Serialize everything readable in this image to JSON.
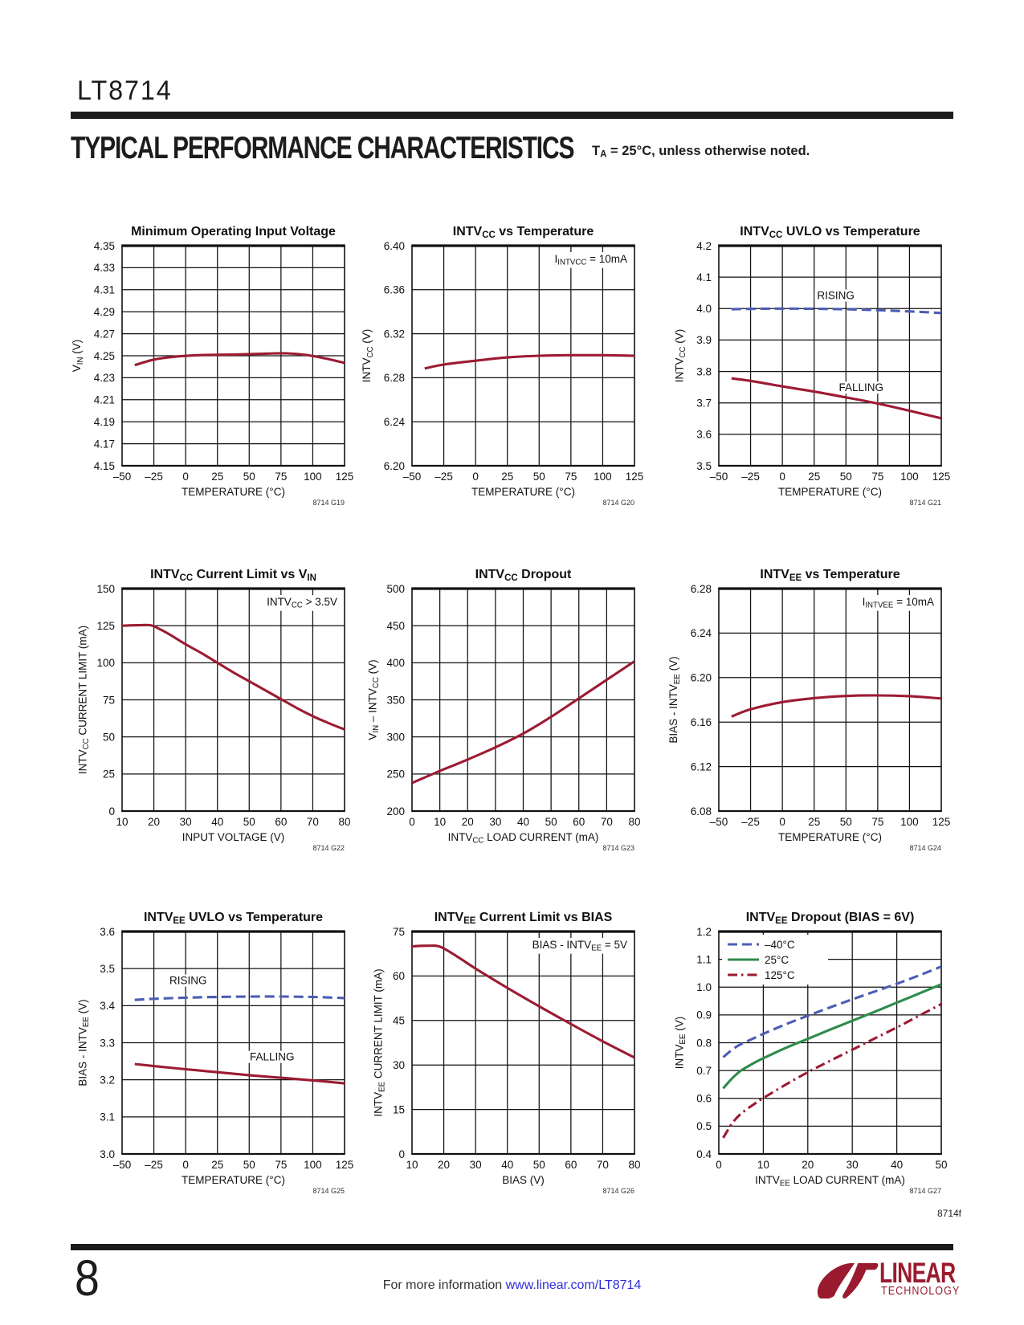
{
  "page": {
    "part_number": "LT8714",
    "section_title": "TYPICAL PERFORMANCE CHARACTERISTICS",
    "section_note": "T~A~ = 25°C, unless otherwise noted.",
    "footer": {
      "doc_code": "8714f",
      "page_number": "8",
      "info_text": "For more information ",
      "info_link": "www.linear.com/LT8714",
      "logo_brand": "LINEAR",
      "logo_sub": "TECHNOLOGY"
    },
    "colors": {
      "red": "#9c1b33",
      "blue": "#4c5cb5",
      "green": "#2f8b4b",
      "grid": "#111111",
      "text": "#111111",
      "link": "#2b2bd9",
      "logo": "#9a1b2f"
    }
  },
  "chart_data": [
    {
      "id": "8714 G19",
      "type": "line",
      "title": "Minimum Operating Input Voltage",
      "xlabel": "TEMPERATURE (°C)",
      "ylabel": "V~IN~ (V)",
      "xlim": [
        -50,
        125
      ],
      "xstep": 25,
      "xdec": 0,
      "ylim": [
        4.15,
        4.35
      ],
      "ystep": 0.02,
      "ydec": 2,
      "series": [
        {
          "name": "VIN",
          "color": "red",
          "style": "solid",
          "points": [
            [
              -40,
              4.2415
            ],
            [
              -25,
              4.2465
            ],
            [
              -10,
              4.249
            ],
            [
              10,
              4.2505
            ],
            [
              40,
              4.2512
            ],
            [
              65,
              4.252
            ],
            [
              80,
              4.2522
            ],
            [
              95,
              4.2507
            ],
            [
              110,
              4.2475
            ],
            [
              125,
              4.2435
            ]
          ]
        }
      ]
    },
    {
      "id": "8714 G20",
      "type": "line",
      "title": "INTV~CC~ vs Temperature",
      "xlabel": "TEMPERATURE (°C)",
      "ylabel": "INTV~CC~ (V)",
      "xlim": [
        -50,
        125
      ],
      "xstep": 25,
      "xdec": 0,
      "ylim": [
        6.2,
        6.4
      ],
      "ystep": 0.04,
      "ydec": 2,
      "annotation": "I~INTVCC~ = 10mA",
      "series": [
        {
          "name": "INTVCC",
          "color": "red",
          "style": "solid",
          "points": [
            [
              -40,
              6.2885
            ],
            [
              -25,
              6.292
            ],
            [
              0,
              6.2955
            ],
            [
              25,
              6.2985
            ],
            [
              50,
              6.3
            ],
            [
              75,
              6.3005
            ],
            [
              100,
              6.3005
            ],
            [
              125,
              6.3
            ]
          ]
        }
      ]
    },
    {
      "id": "8714 G21",
      "type": "line",
      "title": "INTV~CC~ UVLO vs Temperature",
      "xlabel": "TEMPERATURE (°C)",
      "ylabel": "INTV~CC~ (V)",
      "xlim": [
        -50,
        125
      ],
      "xstep": 25,
      "xdec": 0,
      "ylim": [
        3.5,
        4.2
      ],
      "ystep": 0.1,
      "ydec": 1,
      "series": [
        {
          "name": "RISING",
          "color": "blue",
          "style": "dashed",
          "points": [
            [
              -40,
              3.998
            ],
            [
              -20,
              3.9995
            ],
            [
              0,
              4.0
            ],
            [
              25,
              3.9995
            ],
            [
              50,
              3.998
            ],
            [
              75,
              3.995
            ],
            [
              100,
              3.991
            ],
            [
              125,
              3.986
            ]
          ]
        },
        {
          "name": "FALLING",
          "color": "red",
          "style": "solid",
          "points": [
            [
              -40,
              3.778
            ],
            [
              -25,
              3.77
            ],
            [
              0,
              3.7525
            ],
            [
              25,
              3.736
            ],
            [
              50,
              3.7175
            ],
            [
              75,
              3.698
            ],
            [
              100,
              3.675
            ],
            [
              125,
              3.651
            ]
          ]
        }
      ],
      "inline_labels": [
        {
          "text": "RISING",
          "x": 42,
          "y": 4.03
        },
        {
          "text": "FALLING",
          "x": 62,
          "y": 3.737
        }
      ]
    },
    {
      "id": "8714 G22",
      "type": "line",
      "title": "INTV~CC~ Current Limit vs V~IN~",
      "xlabel": "INPUT VOLTAGE (V)",
      "ylabel": "INTV~CC~ CURRENT LIMIT (mA)",
      "xlim": [
        10,
        80
      ],
      "xstep": 10,
      "xdec": 0,
      "ylim": [
        0,
        150
      ],
      "ystep": 25,
      "ydec": 0,
      "annotation": "INTV~CC~ > 3.5V",
      "series": [
        {
          "name": "current limit",
          "color": "red",
          "style": "solid",
          "points": [
            [
              10,
              125
            ],
            [
              15,
              125.3
            ],
            [
              19,
              125.3
            ],
            [
              22,
              122.5
            ],
            [
              25,
              119
            ],
            [
              30,
              112.5
            ],
            [
              35,
              106.5
            ],
            [
              40,
              100
            ],
            [
              45,
              93.5
            ],
            [
              50,
              87.5
            ],
            [
              55,
              81.5
            ],
            [
              60,
              75.5
            ],
            [
              65,
              69.5
            ],
            [
              70,
              64
            ],
            [
              75,
              59.3
            ],
            [
              80,
              55
            ]
          ]
        }
      ]
    },
    {
      "id": "8714 G23",
      "type": "line",
      "title": "INTV~CC~ Dropout",
      "xlabel": "INTV~CC~ LOAD CURRENT (mA)",
      "ylabel": "V~IN~ – INTV~CC~ (V)",
      "xlim": [
        0,
        80
      ],
      "xstep": 10,
      "xdec": 0,
      "ylim": [
        200,
        500
      ],
      "ystep": 50,
      "ydec": 0,
      "series": [
        {
          "name": "dropout",
          "color": "red",
          "style": "solid",
          "points": [
            [
              0,
              238
            ],
            [
              10,
              254
            ],
            [
              20,
              269.5
            ],
            [
              30,
              286
            ],
            [
              40,
              304.5
            ],
            [
              50,
              327
            ],
            [
              60,
              352
            ],
            [
              70,
              377
            ],
            [
              80,
              402
            ]
          ]
        }
      ]
    },
    {
      "id": "8714 G24",
      "type": "line",
      "title": "INTV~EE~ vs Temperature",
      "xlabel": "TEMPERATURE (°C)",
      "ylabel": "BIAS - INTV~EE~ (V)",
      "xlim": [
        -50,
        125
      ],
      "xstep": 25,
      "xdec": 0,
      "ylim": [
        6.08,
        6.28
      ],
      "ystep": 0.04,
      "ydec": 2,
      "annotation": "I~INTVEE~ = 10mA",
      "series": [
        {
          "name": "INTVEE",
          "color": "red",
          "style": "solid",
          "points": [
            [
              -40,
              6.165
            ],
            [
              -25,
              6.1715
            ],
            [
              0,
              6.178
            ],
            [
              25,
              6.1815
            ],
            [
              50,
              6.1835
            ],
            [
              75,
              6.184
            ],
            [
              100,
              6.1833
            ],
            [
              125,
              6.1812
            ]
          ]
        }
      ]
    },
    {
      "id": "8714 G25",
      "type": "line",
      "title": "INTV~EE~ UVLO vs Temperature",
      "xlabel": "TEMPERATURE (°C)",
      "ylabel": "BIAS - INTV~EE~ (V)",
      "xlim": [
        -50,
        125
      ],
      "xstep": 25,
      "xdec": 0,
      "ylim": [
        3.0,
        3.6
      ],
      "ystep": 0.1,
      "ydec": 1,
      "series": [
        {
          "name": "RISING",
          "color": "blue",
          "style": "dashed",
          "points": [
            [
              -40,
              3.4155
            ],
            [
              -25,
              3.4185
            ],
            [
              0,
              3.4215
            ],
            [
              25,
              3.4235
            ],
            [
              50,
              3.4245
            ],
            [
              75,
              3.4245
            ],
            [
              100,
              3.4235
            ],
            [
              125,
              3.4205
            ]
          ]
        },
        {
          "name": "FALLING",
          "color": "red",
          "style": "solid",
          "points": [
            [
              -40,
              3.2425
            ],
            [
              -25,
              3.237
            ],
            [
              0,
              3.2285
            ],
            [
              25,
              3.2205
            ],
            [
              50,
              3.2125
            ],
            [
              75,
              3.2055
            ],
            [
              100,
              3.1985
            ],
            [
              125,
              3.1905
            ]
          ]
        }
      ],
      "inline_labels": [
        {
          "text": "RISING",
          "x": 2,
          "y": 3.458
        },
        {
          "text": "FALLING",
          "x": 68,
          "y": 3.252
        }
      ]
    },
    {
      "id": "8714 G26",
      "type": "line",
      "title": "INTV~EE~ Current Limit vs BIAS",
      "xlabel": "BIAS (V)",
      "ylabel": "INTV~EE~ CURRENT LIMIT (mA)",
      "xlim": [
        10,
        80
      ],
      "xstep": 10,
      "xdec": 0,
      "ylim": [
        0,
        75
      ],
      "ystep": 15,
      "ydec": 0,
      "annotation": "BIAS - INTV~EE~ = 5V",
      "series": [
        {
          "name": "current limit",
          "color": "red",
          "style": "solid",
          "points": [
            [
              10,
              70
            ],
            [
              15,
              70.2
            ],
            [
              19,
              69.8
            ],
            [
              25,
              66
            ],
            [
              30,
              62.5
            ],
            [
              40,
              56
            ],
            [
              50,
              49.8
            ],
            [
              60,
              43.8
            ],
            [
              70,
              38
            ],
            [
              80,
              32.5
            ]
          ]
        }
      ]
    },
    {
      "id": "8714 G27",
      "type": "line",
      "title": "INTV~EE~ Dropout (BIAS = 6V)",
      "xlabel": "INTV~EE~ LOAD CURRENT (mA)",
      "ylabel": "INTV~EE~ (V)",
      "xlim": [
        0,
        50
      ],
      "xstep": 10,
      "xdec": 0,
      "ylim": [
        0.4,
        1.2
      ],
      "ystep": 0.1,
      "ydec": 1,
      "legend": [
        {
          "label": "–40°C",
          "color": "blue",
          "style": "dashed"
        },
        {
          "label": "25°C",
          "color": "green",
          "style": "solid"
        },
        {
          "label": "125°C",
          "color": "red",
          "style": "dashdot"
        }
      ],
      "series": [
        {
          "name": "-40°C",
          "color": "blue",
          "style": "dashed",
          "points": [
            [
              1,
              0.748
            ],
            [
              3,
              0.775
            ],
            [
              5,
              0.795
            ],
            [
              8,
              0.817
            ],
            [
              10,
              0.832
            ],
            [
              15,
              0.866
            ],
            [
              20,
              0.897
            ],
            [
              25,
              0.927
            ],
            [
              30,
              0.956
            ],
            [
              35,
              0.984
            ],
            [
              40,
              1.012
            ],
            [
              45,
              1.042
            ],
            [
              50,
              1.074
            ]
          ]
        },
        {
          "name": "25°C",
          "color": "green",
          "style": "solid",
          "points": [
            [
              1,
              0.636
            ],
            [
              3,
              0.672
            ],
            [
              5,
              0.7
            ],
            [
              8,
              0.728
            ],
            [
              10,
              0.744
            ],
            [
              15,
              0.781
            ],
            [
              20,
              0.814
            ],
            [
              25,
              0.847
            ],
            [
              30,
              0.879
            ],
            [
              35,
              0.911
            ],
            [
              40,
              0.944
            ],
            [
              45,
              0.977
            ],
            [
              50,
              1.01
            ]
          ]
        },
        {
          "name": "125°C",
          "color": "red",
          "style": "dashdot",
          "points": [
            [
              1,
              0.458
            ],
            [
              3,
              0.51
            ],
            [
              5,
              0.545
            ],
            [
              8,
              0.58
            ],
            [
              10,
              0.601
            ],
            [
              15,
              0.649
            ],
            [
              20,
              0.694
            ],
            [
              25,
              0.735
            ],
            [
              30,
              0.775
            ],
            [
              35,
              0.815
            ],
            [
              40,
              0.855
            ],
            [
              45,
              0.897
            ],
            [
              50,
              0.939
            ]
          ]
        }
      ]
    }
  ]
}
